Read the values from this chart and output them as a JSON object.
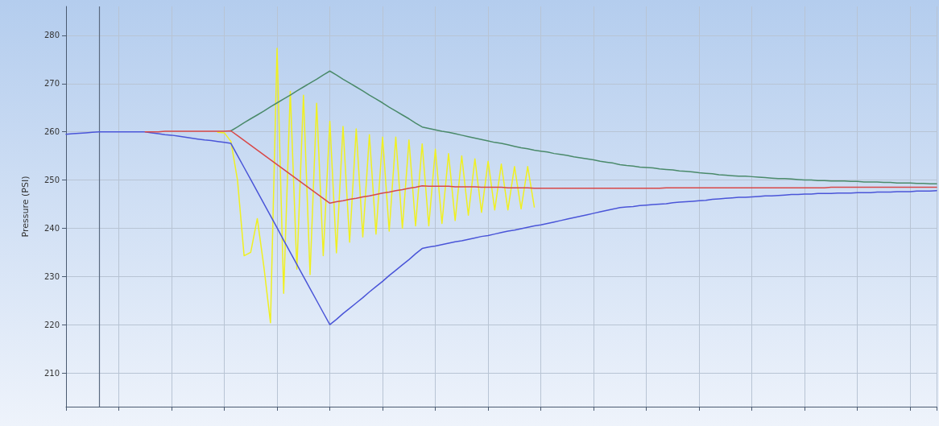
{
  "chart_data": {
    "type": "line",
    "ylabel": "Pressure (PSI)",
    "categories": [
      null,
      null,
      null,
      null,
      null,
      null,
      null,
      null,
      null,
      null,
      null,
      null,
      null,
      null,
      null,
      null,
      null,
      null,
      null,
      null,
      null,
      null,
      null,
      null,
      null,
      null,
      null,
      null,
      null,
      null,
      null,
      null,
      null,
      null,
      null,
      null,
      null,
      null,
      null,
      null,
      null,
      null,
      null,
      null,
      null,
      null,
      null,
      null,
      null,
      null,
      null,
      null,
      null,
      null,
      null,
      null,
      null,
      null,
      null,
      null,
      null,
      null,
      null,
      null,
      null,
      null,
      null,
      null,
      null,
      null,
      null,
      null,
      null,
      null,
      null,
      null,
      null,
      null,
      null,
      null,
      null,
      null,
      null,
      null,
      null,
      null,
      null,
      null,
      null,
      null,
      null,
      null,
      null,
      null,
      null,
      null,
      null,
      null,
      null,
      null,
      null,
      null,
      null,
      null,
      null,
      null,
      null,
      null,
      null,
      null,
      null,
      null,
      null,
      null,
      null,
      null,
      null,
      null,
      null,
      null,
      null,
      null,
      null,
      null,
      null,
      null,
      null,
      null,
      null,
      null,
      null,
      null,
      null
    ],
    "ylim": [
      203,
      286
    ],
    "yticks": [
      210,
      220,
      230,
      240,
      250,
      260,
      270,
      280
    ],
    "grid": true,
    "marker": "none",
    "line_style": "solid",
    "series": [
      {
        "color": "#f0f020",
        "values": [
          null,
          null,
          null,
          null,
          null,
          null,
          null,
          null,
          null,
          null,
          null,
          null,
          null,
          null,
          null,
          null,
          null,
          null,
          null,
          null,
          null,
          null,
          null,
          259.9,
          259.8,
          258,
          250,
          234.3,
          235,
          242,
          232,
          220.4,
          277.3,
          226.5,
          268.4,
          231.5,
          267.6,
          230.4,
          265.9,
          234.3,
          262.2,
          234.9,
          261.1,
          237.1,
          260.6,
          238.2,
          259.4,
          238.8,
          258.9,
          239.4,
          258.9,
          240,
          258.3,
          240.5,
          257.5,
          240.5,
          256.4,
          241,
          255.5,
          241.6,
          255,
          242.7,
          254.4,
          243.3,
          253.9,
          243.8,
          253.3,
          243.8,
          252.8,
          244,
          252.8,
          244.4,
          null,
          null,
          null,
          null,
          null,
          null,
          null,
          null,
          null,
          null,
          null,
          null,
          null,
          null,
          null,
          null,
          null,
          null,
          null,
          null,
          null,
          null,
          null,
          null,
          null,
          null,
          null,
          null,
          null,
          null,
          null,
          null,
          null,
          null,
          null,
          null,
          null,
          null,
          null,
          null,
          null,
          null,
          null,
          null,
          null,
          null,
          null,
          null,
          null,
          null,
          null,
          null,
          null,
          null,
          null,
          null,
          null,
          null,
          null,
          null,
          null
        ]
      },
      {
        "color": "#4a8a6a",
        "values": [
          null,
          null,
          null,
          null,
          null,
          null,
          null,
          null,
          null,
          null,
          null,
          null,
          null,
          null,
          null,
          null,
          null,
          null,
          null,
          null,
          null,
          null,
          null,
          null,
          null,
          260.2,
          261,
          261.9,
          262.7,
          263.5,
          264.3,
          265.2,
          266,
          266.8,
          267.6,
          268.5,
          269.3,
          270.1,
          270.9,
          271.8,
          272.6,
          271.8,
          270.9,
          270.1,
          269.3,
          268.5,
          267.6,
          266.8,
          266,
          265.1,
          264.3,
          263.5,
          262.7,
          261.8,
          261,
          260.7,
          260.4,
          260.1,
          259.9,
          259.6,
          259.3,
          259,
          258.7,
          258.4,
          258.1,
          257.8,
          257.6,
          257.3,
          257,
          256.7,
          256.5,
          256.2,
          256,
          255.8,
          255.5,
          255.3,
          255.1,
          254.8,
          254.6,
          254.4,
          254.2,
          253.9,
          253.7,
          253.5,
          253.2,
          253,
          252.9,
          252.7,
          252.6,
          252.5,
          252.3,
          252.2,
          252.1,
          251.9,
          251.8,
          251.7,
          251.5,
          251.4,
          251.3,
          251.1,
          251,
          250.9,
          250.8,
          250.8,
          250.7,
          250.6,
          250.5,
          250.4,
          250.3,
          250.3,
          250.2,
          250.1,
          250,
          250,
          249.9,
          249.9,
          249.8,
          249.8,
          249.8,
          249.7,
          249.7,
          249.6,
          249.6,
          249.6,
          249.5,
          249.5,
          249.4,
          249.4,
          249.4,
          249.3,
          249.3,
          249.2,
          249.2
        ]
      },
      {
        "color": "#4a55d8",
        "values": [
          259.5,
          259.6,
          259.7,
          259.8,
          259.9,
          260,
          260,
          260,
          260,
          260,
          260,
          260,
          260,
          259.8,
          259.6,
          259.4,
          259.3,
          259.1,
          258.9,
          258.7,
          258.5,
          258.3,
          258.2,
          258,
          257.8,
          257.6,
          255.1,
          252.6,
          250.1,
          247.6,
          245.1,
          242.6,
          240.1,
          237.5,
          235,
          232.5,
          230,
          227.5,
          225,
          222.5,
          220,
          221.1,
          222.3,
          223.4,
          224.5,
          225.6,
          226.8,
          227.9,
          229,
          230.2,
          231.3,
          232.4,
          233.5,
          234.7,
          235.8,
          236.1,
          236.3,
          236.6,
          236.9,
          237.2,
          237.4,
          237.7,
          238,
          238.3,
          238.5,
          238.8,
          239.1,
          239.4,
          239.6,
          239.9,
          240.2,
          240.5,
          240.7,
          241,
          241.3,
          241.6,
          241.9,
          242.2,
          242.5,
          242.8,
          243.1,
          243.4,
          243.7,
          244,
          244.3,
          244.4,
          244.5,
          244.7,
          244.8,
          244.9,
          245,
          245.1,
          245.3,
          245.4,
          245.5,
          245.6,
          245.7,
          245.8,
          246,
          246.1,
          246.2,
          246.3,
          246.4,
          246.4,
          246.5,
          246.6,
          246.7,
          246.7,
          246.8,
          246.9,
          247,
          247,
          247.1,
          247.1,
          247.2,
          247.2,
          247.2,
          247.3,
          247.3,
          247.3,
          247.4,
          247.4,
          247.4,
          247.5,
          247.5,
          247.5,
          247.6,
          247.6,
          247.6,
          247.7,
          247.7,
          247.7,
          247.8
        ]
      },
      {
        "color": "#d84848",
        "values": [
          null,
          null,
          null,
          null,
          null,
          null,
          null,
          null,
          null,
          null,
          null,
          null,
          260,
          260,
          260,
          260.1,
          260.1,
          260.1,
          260.1,
          260.1,
          260.1,
          260.1,
          260.1,
          260.1,
          260.1,
          260.2,
          259.2,
          258.2,
          257.2,
          256.2,
          255.2,
          254.2,
          253.2,
          252.2,
          251.2,
          250.2,
          249.2,
          248.2,
          247.2,
          246.2,
          245.2,
          245.5,
          245.7,
          246,
          246.2,
          246.5,
          246.7,
          247,
          247.3,
          247.5,
          247.8,
          248,
          248.3,
          248.5,
          248.8,
          248.7,
          248.7,
          248.7,
          248.7,
          248.6,
          248.6,
          248.6,
          248.6,
          248.5,
          248.5,
          248.5,
          248.5,
          248.4,
          248.4,
          248.4,
          248.4,
          248.3,
          248.3,
          248.3,
          248.3,
          248.3,
          248.3,
          248.3,
          248.3,
          248.3,
          248.3,
          248.3,
          248.3,
          248.3,
          248.3,
          248.3,
          248.3,
          248.3,
          248.3,
          248.3,
          248.3,
          248.4,
          248.4,
          248.4,
          248.4,
          248.4,
          248.4,
          248.4,
          248.4,
          248.4,
          248.4,
          248.4,
          248.4,
          248.4,
          248.4,
          248.4,
          248.4,
          248.4,
          248.4,
          248.4,
          248.4,
          248.4,
          248.4,
          248.4,
          248.4,
          248.4,
          248.5,
          248.5,
          248.5,
          248.5,
          248.5,
          248.5,
          248.5,
          248.5,
          248.5,
          248.5,
          248.5,
          248.5,
          248.5,
          248.5,
          248.5,
          248.5,
          248.5
        ]
      }
    ]
  }
}
